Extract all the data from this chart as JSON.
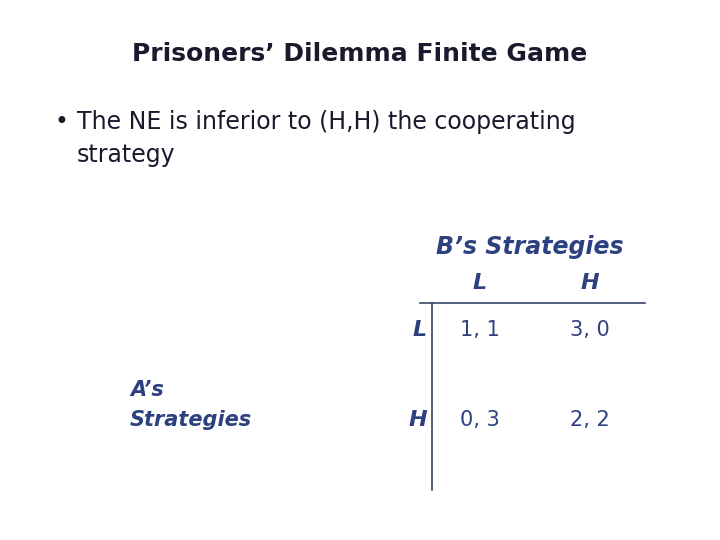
{
  "title": "Prisoners’ Dilemma Finite Game",
  "bullet_line1": "The NE is inferior to (H,H) the cooperating",
  "bullet_line2": "strategy",
  "b_strategies_label": "B’s Strategies",
  "a_label_line1": "A’s",
  "a_label_line2": "Strategies",
  "col_headers": [
    "L",
    "H"
  ],
  "row_headers": [
    "L",
    "H"
  ],
  "payoffs": [
    [
      "1, 1",
      "3, 0"
    ],
    [
      "0, 3",
      "2, 2"
    ]
  ],
  "title_color": "#1a1a2e",
  "body_text_color": "#1a1a2e",
  "blue_color": "#2d4080",
  "background_color": "#ffffff",
  "title_fontsize": 18,
  "bullet_fontsize": 17,
  "table_header_fontsize": 15,
  "table_cell_fontsize": 15,
  "as_label_fontsize": 15
}
